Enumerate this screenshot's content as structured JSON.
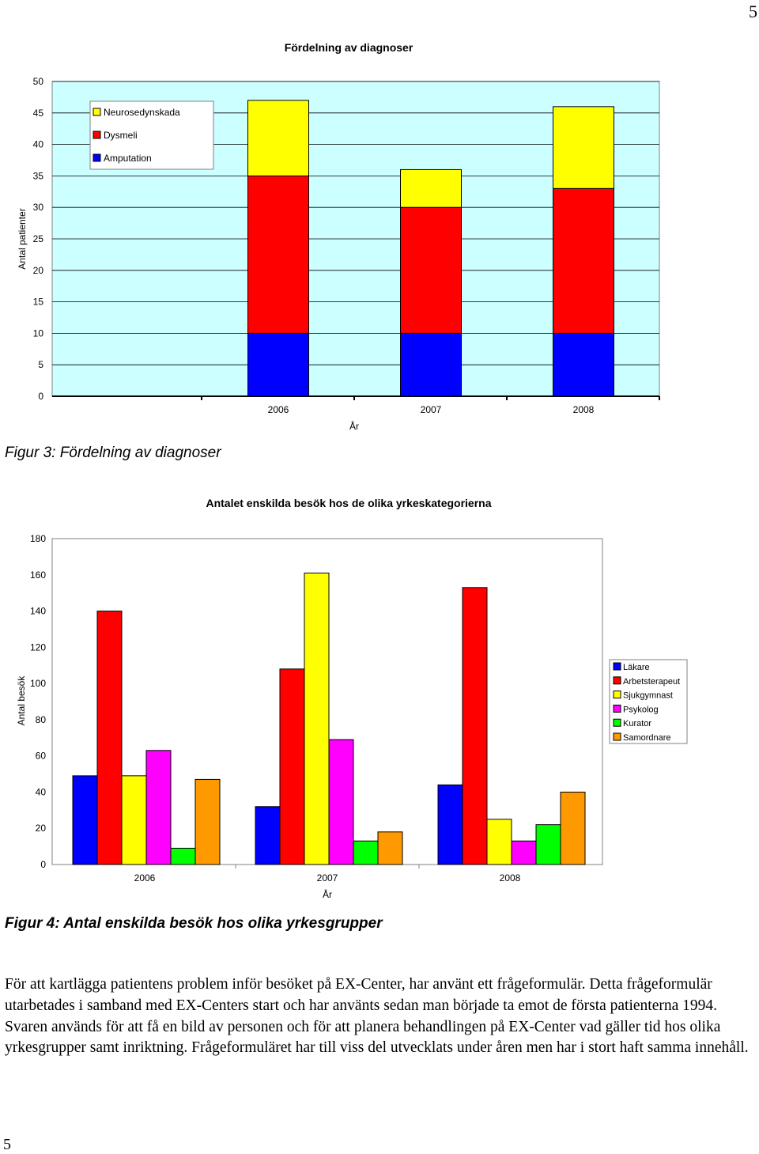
{
  "page": {
    "number_top": "5",
    "number_bottom": "5"
  },
  "figure3": {
    "caption": "Figur 3: Fördelning av diagnoser"
  },
  "figure4": {
    "caption": "Figur 4: Antal enskilda besök hos olika yrkesgrupper"
  },
  "body_text": "För att kartlägga patientens problem inför besöket på EX-Center, har använt ett frågeformulär. Detta frågeformulär utarbetades i samband med EX-Centers start och har använts sedan man började ta emot de första patienterna 1994. Svaren används för att få en bild av personen och för att planera behandlingen på EX-Center vad gäller tid hos olika yrkesgrupper samt inriktning. Frågeformuläret har till viss del utvecklats under åren men har i stort haft samma innehåll.",
  "chart_data": [
    {
      "type": "bar",
      "stacked": true,
      "title": "Fördelning av diagnoser",
      "xlabel": "År",
      "ylabel": "Antal patienter",
      "categories": [
        "2006",
        "2007",
        "2008"
      ],
      "ylim": [
        0,
        50
      ],
      "yticks": [
        0,
        5,
        10,
        15,
        20,
        25,
        30,
        35,
        40,
        45,
        50
      ],
      "grid": true,
      "background": "#ccffff",
      "legend_position": "top-left",
      "legend_order": [
        "Neurosedynskada",
        "Dysmeli",
        "Amputation"
      ],
      "series": [
        {
          "name": "Amputation",
          "color": "#0000ff",
          "values": [
            10,
            10,
            10
          ]
        },
        {
          "name": "Dysmeli",
          "color": "#ff0000",
          "values": [
            25,
            20,
            23
          ]
        },
        {
          "name": "Neurosedynskada",
          "color": "#ffff00",
          "values": [
            12,
            6,
            13
          ]
        }
      ]
    },
    {
      "type": "bar",
      "stacked": false,
      "title": "Antalet enskilda besök hos de olika yrkeskategorierna",
      "xlabel": "År",
      "ylabel": "Antal besök",
      "categories": [
        "2006",
        "2007",
        "2008"
      ],
      "ylim": [
        0,
        180
      ],
      "yticks": [
        0,
        20,
        40,
        60,
        80,
        100,
        120,
        140,
        160,
        180
      ],
      "grid": false,
      "background": "#ffffff",
      "legend_position": "right",
      "series": [
        {
          "name": "Läkare",
          "color": "#0000ff",
          "values": [
            49,
            32,
            44
          ]
        },
        {
          "name": "Arbetsterapeut",
          "color": "#ff0000",
          "values": [
            140,
            108,
            153
          ]
        },
        {
          "name": "Sjukgymnast",
          "color": "#ffff00",
          "values": [
            49,
            161,
            25
          ]
        },
        {
          "name": "Psykolog",
          "color": "#ff00ff",
          "values": [
            63,
            69,
            13
          ]
        },
        {
          "name": "Kurator",
          "color": "#00ff00",
          "values": [
            9,
            13,
            22
          ]
        },
        {
          "name": "Samordnare",
          "color": "#ff9900",
          "values": [
            47,
            18,
            40
          ]
        }
      ]
    }
  ]
}
